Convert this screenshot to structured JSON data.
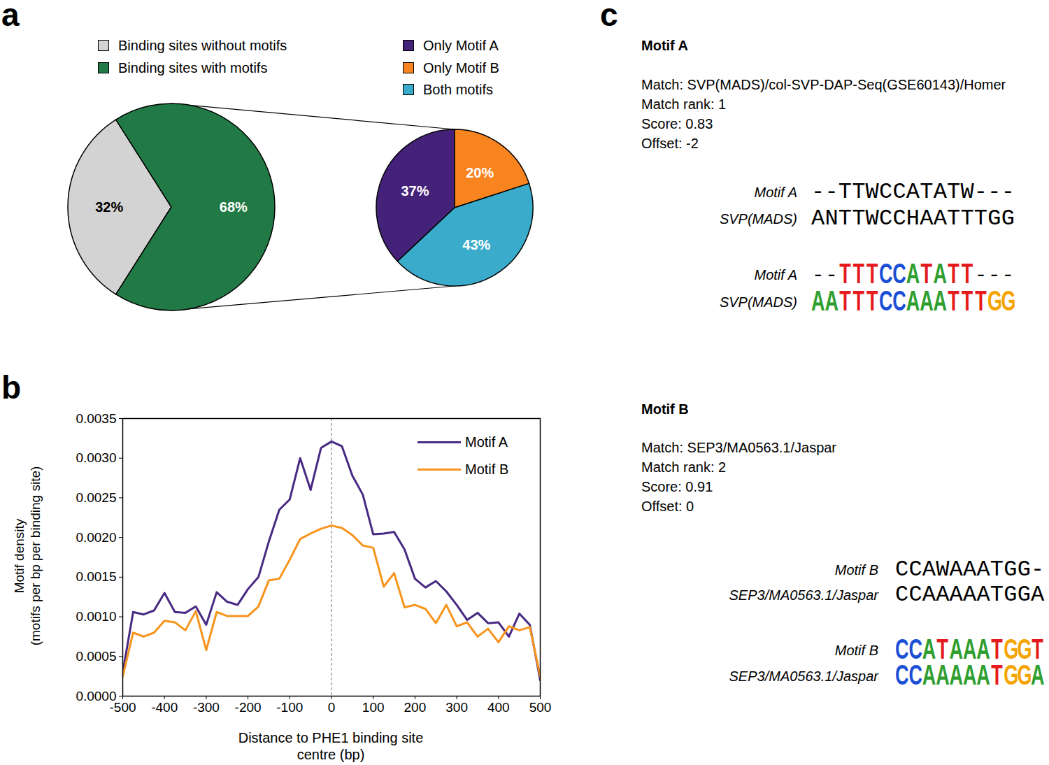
{
  "panel_labels": [
    "a",
    "b",
    "c"
  ],
  "chart_data": [
    {
      "type": "pie",
      "categories": [
        "Binding sites without motifs",
        "Binding sites with motifs"
      ],
      "values": [
        32,
        68
      ],
      "value_labels": [
        "32%",
        "68%"
      ],
      "colors": [
        "#d3d3d3",
        "#217a45"
      ],
      "data_labels": true,
      "legend": "top"
    },
    {
      "type": "pie",
      "categories": [
        "Only Motif A",
        "Only Motif B",
        "Both motifs"
      ],
      "values": [
        37,
        20,
        43
      ],
      "value_labels": [
        "37%",
        "20%",
        "43%"
      ],
      "colors": [
        "#45227a",
        "#f7841f",
        "#3aabca"
      ],
      "data_labels": true,
      "legend": "top"
    },
    {
      "type": "line",
      "x": [
        -500,
        -475,
        -450,
        -425,
        -400,
        -375,
        -350,
        -325,
        -300,
        -275,
        -250,
        -225,
        -200,
        -175,
        -150,
        -125,
        -100,
        -75,
        -50,
        -25,
        0,
        25,
        50,
        75,
        100,
        125,
        150,
        175,
        200,
        225,
        250,
        275,
        300,
        325,
        350,
        375,
        400,
        425,
        450,
        475,
        500
      ],
      "series": [
        {
          "name": "Motif A",
          "color": "#482a82",
          "values": [
            0.0003,
            0.00106,
            0.00103,
            0.00108,
            0.0013,
            0.00106,
            0.00105,
            0.00113,
            0.0009,
            0.00131,
            0.00119,
            0.00115,
            0.00135,
            0.0015,
            0.00195,
            0.00235,
            0.00248,
            0.003,
            0.0026,
            0.00313,
            0.00321,
            0.00315,
            0.00278,
            0.00254,
            0.00204,
            0.00205,
            0.00207,
            0.00185,
            0.00148,
            0.00137,
            0.00145,
            0.00132,
            0.00115,
            0.00096,
            0.00105,
            0.00092,
            0.00093,
            0.00075,
            0.00104,
            0.0009,
            0.0002
          ]
        },
        {
          "name": "Motif B",
          "color": "#f7941d",
          "values": [
            0.00025,
            0.0008,
            0.00075,
            0.0008,
            0.00095,
            0.00093,
            0.00083,
            0.00107,
            0.00058,
            0.00106,
            0.00101,
            0.00101,
            0.00101,
            0.00113,
            0.00146,
            0.00148,
            0.00172,
            0.00198,
            0.00205,
            0.00211,
            0.00215,
            0.00212,
            0.00203,
            0.0019,
            0.00187,
            0.00138,
            0.00155,
            0.00112,
            0.00115,
            0.0011,
            0.00092,
            0.00115,
            0.00088,
            0.00093,
            0.00075,
            0.00085,
            0.00068,
            0.00088,
            0.00083,
            0.00087,
            0.00025
          ]
        }
      ],
      "xlim": [
        -500,
        500
      ],
      "ylim": [
        0,
        0.0035
      ],
      "xticks": [
        -500,
        -400,
        -300,
        -200,
        -100,
        0,
        100,
        200,
        300,
        400,
        500
      ],
      "yticks": [
        {
          "value": 0,
          "label": "0.0000"
        },
        {
          "value": 0.0005,
          "label": "0.0005"
        },
        {
          "value": 0.001,
          "label": "0.0010"
        },
        {
          "value": 0.0015,
          "label": "0.0015"
        },
        {
          "value": 0.002,
          "label": "0.0020"
        },
        {
          "value": 0.0025,
          "label": "0.0025"
        },
        {
          "value": 0.003,
          "label": "0.0030"
        },
        {
          "value": 0.0035,
          "label": "0.0035"
        }
      ],
      "x_label": "Distance to PHE1 binding site\ncentre (bp)",
      "y_label": "Motif density\n(motifs per bp per binding site)",
      "reference_x": 0,
      "grid": false,
      "legend": "top-right"
    }
  ],
  "motif_panel": {
    "motifs": [
      {
        "title": "Motif A",
        "info": [
          "Match: SVP(MADS)/col-SVP-DAP-Seq(GSE60143)/Homer",
          "Match rank: 1",
          "Score: 0.83",
          "Offset: -2"
        ],
        "alignment": [
          {
            "label": "Motif A",
            "sequence": "--TTWCCATATW---"
          },
          {
            "label": "SVP(MADS)",
            "sequence": "ANTTWCCHAATTTGG"
          }
        ],
        "logos": [
          {
            "label": "Motif A",
            "letters": "--TTTCCATATT---"
          },
          {
            "label": "SVP(MADS)",
            "letters": "AATTTCCAAATTTGG"
          }
        ]
      },
      {
        "title": "Motif B",
        "info": [
          "Match: SEP3/MA0563.1/Jaspar",
          "Match rank: 2",
          "Score: 0.91",
          "Offset: 0"
        ],
        "alignment": [
          {
            "label": "Motif B",
            "sequence": "CCAWAAATGG-"
          },
          {
            "label": "SEP3/MA0563.1/Jaspar",
            "sequence": "CCAAAAATGGA"
          }
        ],
        "logos": [
          {
            "label": "Motif B",
            "letters": "CCATAAATGGT"
          },
          {
            "label": "SEP3/MA0563.1/Jaspar",
            "letters": "CCAAAAATGGA"
          }
        ]
      }
    ]
  }
}
